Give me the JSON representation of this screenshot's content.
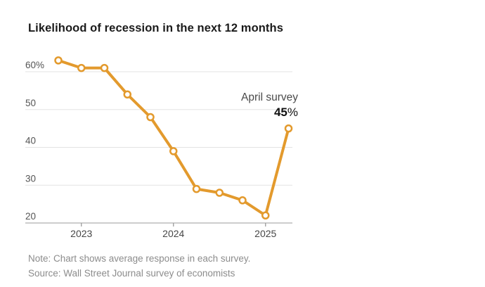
{
  "chart": {
    "title": "Likelihood of recession in the next 12 months",
    "annotation": {
      "label": "April survey",
      "value_number": "45",
      "value_suffix": "%"
    },
    "note": "Note: Chart shows average response in each survey.",
    "source": "Source: Wall Street Journal survey of economists"
  },
  "chart_data": {
    "type": "line",
    "x": [
      "Oct 2022",
      "Jan 2023",
      "Apr 2023",
      "Jul 2023",
      "Oct 2023",
      "Jan 2024",
      "Apr 2024",
      "Jul 2024",
      "Oct 2024",
      "Jan 2025",
      "Apr 2025"
    ],
    "values": [
      63,
      61,
      61,
      54,
      48,
      39,
      29,
      28,
      26,
      22,
      45
    ],
    "series_name": "Likelihood of recession",
    "unit": "%",
    "ylim": [
      20,
      63
    ],
    "grid": "horizontal",
    "legend": "none",
    "yticks": [
      {
        "value": 60,
        "label": "60%"
      },
      {
        "value": 50,
        "label": "50"
      },
      {
        "value": 40,
        "label": "40"
      },
      {
        "value": 30,
        "label": "30"
      },
      {
        "value": 20,
        "label": "20"
      }
    ],
    "xticks": [
      {
        "index": 1,
        "label": "2023"
      },
      {
        "index": 5,
        "label": "2024"
      },
      {
        "index": 9,
        "label": "2025"
      }
    ],
    "colors": {
      "line": "#E39A2D",
      "marker_fill": "#FFFFFF",
      "grid": "#E3E3E3",
      "axis": "#9B9B9B",
      "tick_label": "#555555",
      "xtick_label": "#474747",
      "title": "#1B1B1B",
      "annotation": "#4A4A4A",
      "annotation_value": "#111111",
      "note": "#8C8C8C"
    }
  }
}
